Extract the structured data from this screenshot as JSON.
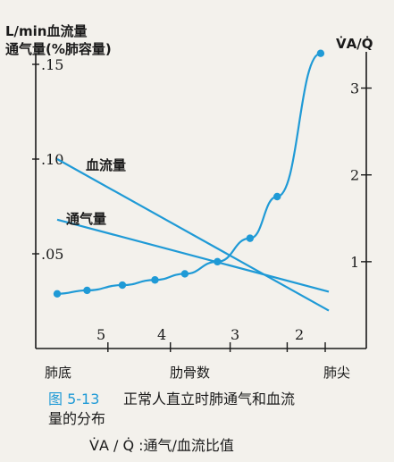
{
  "chart_data": {
    "type": "line",
    "ylabel_line1": "L/min血流量",
    "ylabel_line2": "通气量(%肺容量)",
    "y2label": "V̇A/Q̇",
    "yticks": [
      ".15",
      ".10",
      ".05"
    ],
    "y2ticks": [
      "3",
      "2",
      "1"
    ],
    "xlabel_left": "肺底",
    "xlabel_center": "肋骨数",
    "xlabel_right": "肺尖",
    "rib_ticks": [
      "5",
      "4",
      "3",
      "2"
    ],
    "ylim": [
      0,
      0.15
    ],
    "y2lim": [
      0,
      3.5
    ],
    "series": [
      {
        "name": "血流量",
        "axis": "left",
        "x": [
          0,
          1
        ],
        "values": [
          0.1,
          0.02
        ],
        "markers": false
      },
      {
        "name": "通气量",
        "axis": "left",
        "x": [
          0,
          1
        ],
        "values": [
          0.068,
          0.03
        ],
        "markers": false
      },
      {
        "name": "",
        "axis": "right",
        "x": [
          0,
          0.11,
          0.24,
          0.36,
          0.47,
          0.59,
          0.71,
          0.81,
          0.97
        ],
        "values": [
          0.63,
          0.67,
          0.73,
          0.79,
          0.86,
          1.0,
          1.27,
          1.75,
          3.4
        ],
        "markers": true
      }
    ]
  },
  "caption": {
    "figure_number": "图 5-13",
    "title_line1": "正常人直立时肺通气和血流",
    "title_line2": "量的分布",
    "legend_line": "V̇A / Q̇ :通气/血流比值"
  },
  "colors": {
    "series": "#1f9ad6",
    "axis": "#1a1a1a"
  }
}
